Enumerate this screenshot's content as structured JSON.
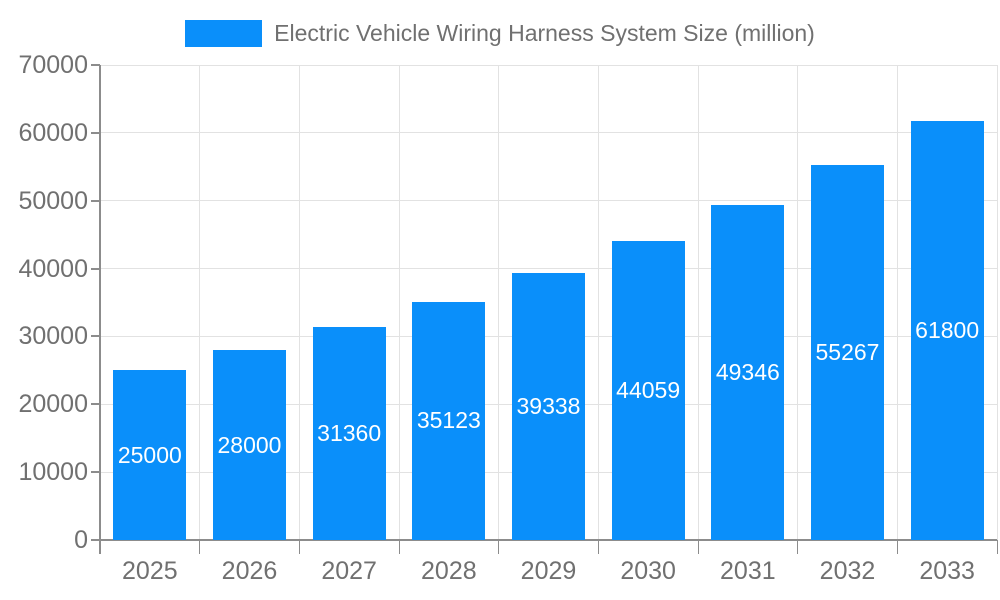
{
  "legend": {
    "label": "Electric Vehicle Wiring Harness System Size (million)"
  },
  "chart_data": {
    "type": "bar",
    "title": "",
    "xlabel": "",
    "ylabel": "",
    "categories": [
      "2025",
      "2026",
      "2027",
      "2028",
      "2029",
      "2030",
      "2031",
      "2032",
      "2033"
    ],
    "series": [
      {
        "name": "Electric Vehicle Wiring Harness System Size (million)",
        "values": [
          25000,
          28000,
          31360,
          35123,
          39338,
          44059,
          49346,
          55267,
          61800
        ]
      }
    ],
    "value_labels_shown": true,
    "value_label_position": "inside-center",
    "ylim": [
      0,
      70000
    ],
    "yticks": [
      0,
      10000,
      20000,
      30000,
      40000,
      50000,
      60000,
      70000
    ],
    "grid": true,
    "legend_position": "top-center"
  },
  "colors": {
    "bar": "#0a8ffa",
    "axis": "#8c8c8c",
    "grid": "#e2e2e2",
    "tick_label": "#707070",
    "legend_label": "#757575",
    "value_label": "#ffffff",
    "background": "#ffffff"
  }
}
